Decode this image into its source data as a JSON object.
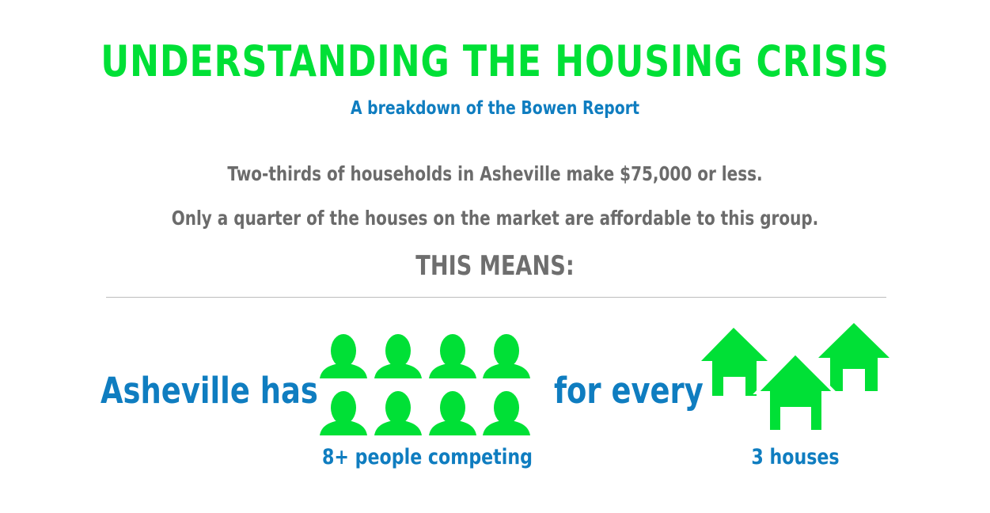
{
  "header": {
    "title": "UNDERSTANDING THE HOUSING CRISIS",
    "subtitle": "A breakdown of the Bowen Report"
  },
  "body": {
    "line1": "Two-thirds of households in Asheville make $75,000 or less.",
    "line2": "Only a quarter of the houses on the market are affordable to this group.",
    "means": "THIS MEANS:"
  },
  "comparison": {
    "phrase_left": "Asheville has",
    "phrase_middle": "for every",
    "people_caption": "8+ people competing",
    "houses_caption": "3 houses",
    "people_count": 8,
    "house_count": 3
  },
  "colors": {
    "accent_green": "#00e036",
    "accent_blue": "#0f7dc0",
    "text_gray": "#6b6b6b"
  },
  "icons": {
    "person": "person-icon",
    "house": "house-icon"
  }
}
